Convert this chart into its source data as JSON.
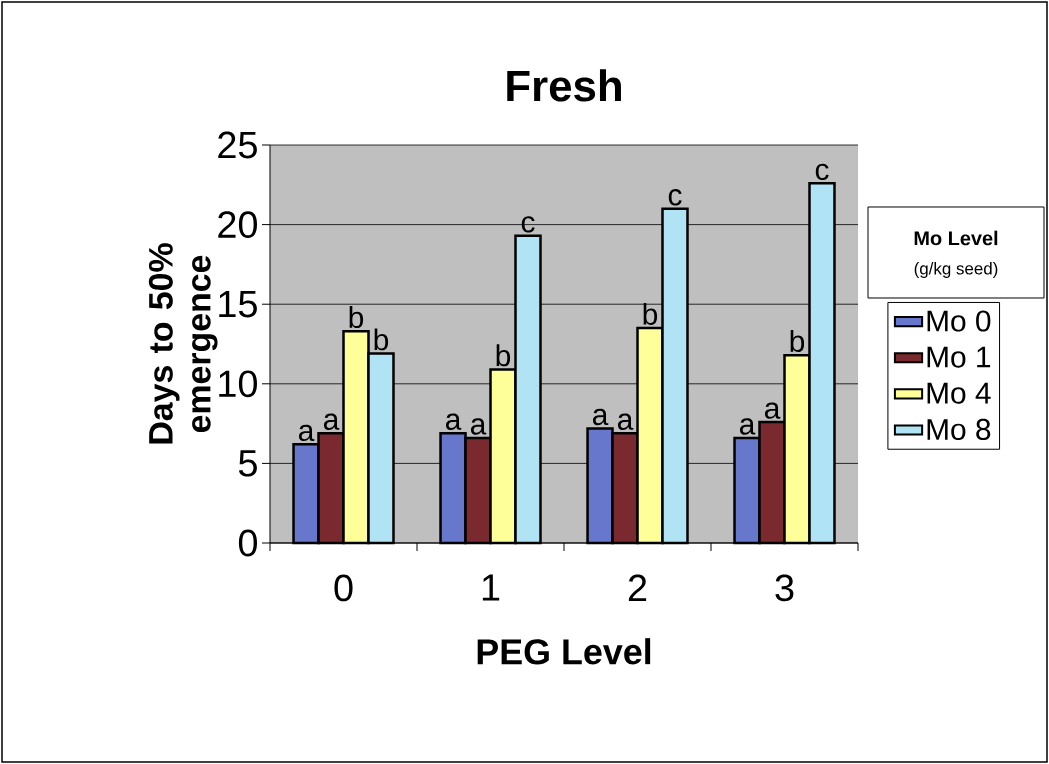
{
  "chart_data": {
    "type": "bar",
    "title": "Fresh",
    "xlabel": "PEG Level",
    "ylabel": "Days to 50% emergence",
    "legend_title": "Mo Level",
    "categories": [
      "0",
      "1",
      "2",
      "3"
    ],
    "series": [
      {
        "name": "Mo 0",
        "color": "#6677cc",
        "values": [
          6.2,
          6.9,
          7.2,
          6.6
        ]
      },
      {
        "name": "Mo 1",
        "color": "#7a2a2e",
        "values": [
          6.9,
          6.6,
          6.9,
          7.6
        ]
      },
      {
        "name": "Mo 4",
        "color": "#ffff99",
        "values": [
          13.3,
          10.9,
          13.5,
          11.8
        ]
      },
      {
        "name": "Mo 8",
        "color": "#b0e4f4",
        "values": [
          11.9,
          19.3,
          21.0,
          22.6
        ]
      }
    ],
    "ylim": [
      0,
      25
    ],
    "yticks": [
      0,
      5,
      10,
      15,
      20,
      25
    ],
    "grid": "y",
    "legend": "right",
    "annotations": [
      "(g/kg seed)",
      "a",
      "a",
      "b",
      "b",
      "a",
      "a",
      "b",
      "c",
      "a",
      "a",
      "b",
      "c",
      "a",
      "a",
      "b",
      "c"
    ]
  }
}
